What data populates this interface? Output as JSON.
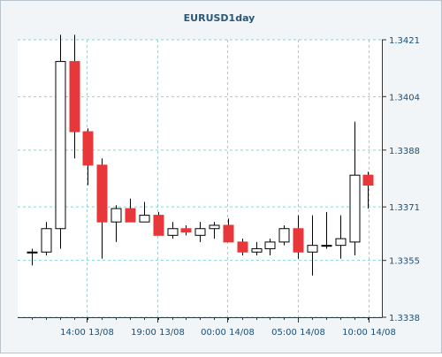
{
  "chart_data": {
    "type": "candlestick",
    "title": "EURUSD1day",
    "y_axis": {
      "position": "right",
      "ticks": [
        "1.3338",
        "1.3355",
        "1.3371",
        "1.3388",
        "1.3404",
        "1.3421"
      ],
      "ylim": [
        1.3338,
        1.3421
      ]
    },
    "x_axis": {
      "ticks": [
        "14:00 13/08",
        "19:00 13/08",
        "00:00 14/08",
        "05:00 14/08",
        "10:00 14/08"
      ]
    },
    "grid": true,
    "colors": {
      "up_body": "#ffffff",
      "down_body": "#e8373a",
      "wick": "#000000",
      "grid": "#8fd0d0",
      "axis": "#333333",
      "tick_text": "#1c4e72",
      "title_text": "#2a5778",
      "plot_bg": "#ffffff",
      "frame_bg": "#f2f5f7"
    },
    "candles": [
      {
        "o": 1.33575,
        "h": 1.33585,
        "l": 1.33535,
        "c": 1.33575
      },
      {
        "o": 1.33575,
        "h": 1.33665,
        "l": 1.33565,
        "c": 1.33645
      },
      {
        "o": 1.33645,
        "h": 1.34225,
        "l": 1.33585,
        "c": 1.34145
      },
      {
        "o": 1.34145,
        "h": 1.34225,
        "l": 1.33855,
        "c": 1.33935
      },
      {
        "o": 1.33935,
        "h": 1.33945,
        "l": 1.33775,
        "c": 1.33835
      },
      {
        "o": 1.33835,
        "h": 1.33855,
        "l": 1.33555,
        "c": 1.33665
      },
      {
        "o": 1.33665,
        "h": 1.33715,
        "l": 1.33605,
        "c": 1.33705
      },
      {
        "o": 1.33705,
        "h": 1.33735,
        "l": 1.33665,
        "c": 1.33665
      },
      {
        "o": 1.33665,
        "h": 1.33725,
        "l": 1.33665,
        "c": 1.33685
      },
      {
        "o": 1.33685,
        "h": 1.33695,
        "l": 1.33625,
        "c": 1.33625
      },
      {
        "o": 1.33625,
        "h": 1.33665,
        "l": 1.33615,
        "c": 1.33645
      },
      {
        "o": 1.33645,
        "h": 1.33655,
        "l": 1.33625,
        "c": 1.33635
      },
      {
        "o": 1.33625,
        "h": 1.33665,
        "l": 1.33605,
        "c": 1.33645
      },
      {
        "o": 1.33645,
        "h": 1.33665,
        "l": 1.33615,
        "c": 1.33655
      },
      {
        "o": 1.33655,
        "h": 1.33675,
        "l": 1.33605,
        "c": 1.33605
      },
      {
        "o": 1.33605,
        "h": 1.33615,
        "l": 1.33565,
        "c": 1.33575
      },
      {
        "o": 1.33575,
        "h": 1.33605,
        "l": 1.33565,
        "c": 1.33585
      },
      {
        "o": 1.33585,
        "h": 1.33615,
        "l": 1.33565,
        "c": 1.33605
      },
      {
        "o": 1.33605,
        "h": 1.33655,
        "l": 1.33595,
        "c": 1.33645
      },
      {
        "o": 1.33645,
        "h": 1.33685,
        "l": 1.33555,
        "c": 1.33575
      },
      {
        "o": 1.33575,
        "h": 1.33685,
        "l": 1.33505,
        "c": 1.33595
      },
      {
        "o": 1.33595,
        "h": 1.33695,
        "l": 1.33585,
        "c": 1.33595
      },
      {
        "o": 1.33595,
        "h": 1.33685,
        "l": 1.33555,
        "c": 1.33615
      },
      {
        "o": 1.33605,
        "h": 1.33965,
        "l": 1.33565,
        "c": 1.33805
      },
      {
        "o": 1.33805,
        "h": 1.33815,
        "l": 1.33705,
        "c": 1.33775
      }
    ]
  }
}
